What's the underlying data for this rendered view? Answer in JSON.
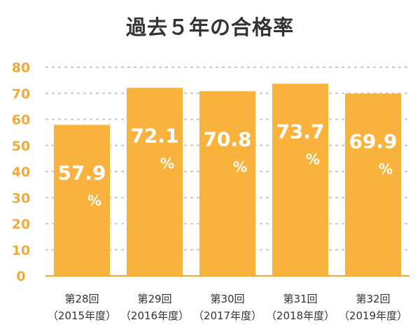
{
  "chart_data": {
    "type": "bar",
    "title": "過去５年の合格率",
    "categories": [
      [
        "第28回",
        "（2015年度）"
      ],
      [
        "第29回",
        "（2016年度）"
      ],
      [
        "第30回",
        "（2017年度）"
      ],
      [
        "第31回",
        "（2018年度）"
      ],
      [
        "第32回",
        "（2019年度）"
      ]
    ],
    "values": [
      57.9,
      72.1,
      70.8,
      73.7,
      69.9
    ],
    "value_labels": [
      "57.9",
      "72.1",
      "70.8",
      "73.7",
      "69.9"
    ],
    "unit": "%",
    "ylim": [
      0,
      80
    ],
    "yticks": [
      "0",
      "10",
      "20",
      "30",
      "40",
      "50",
      "60",
      "70",
      "80"
    ],
    "grid": true,
    "colors": {
      "bar": "#F9B23C",
      "tick": "#F2A93A",
      "grid": "#C8C8C8",
      "axis": "#F2A93A",
      "label": "#333333"
    }
  }
}
